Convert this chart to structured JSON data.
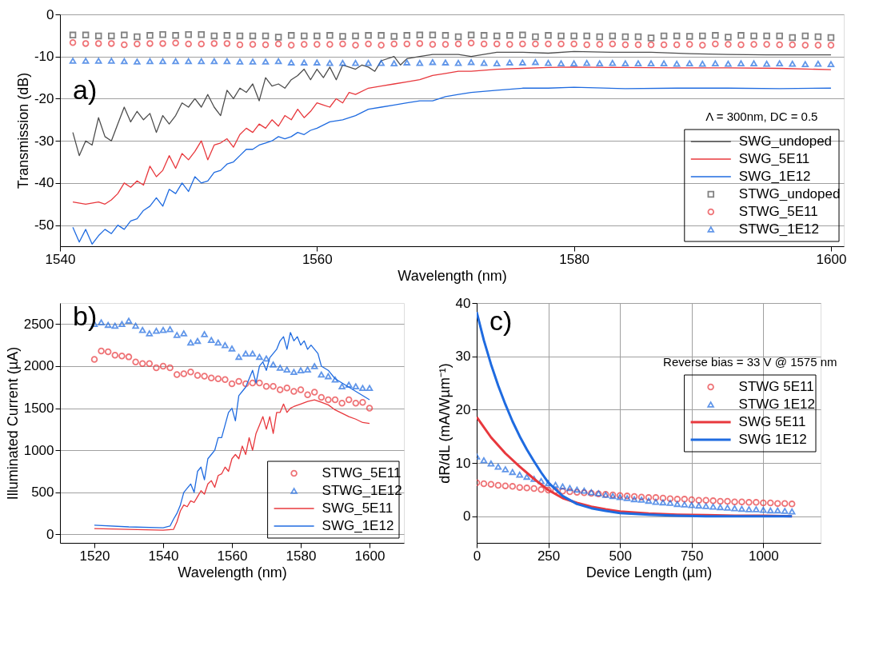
{
  "chart_data": [
    {
      "type": "line",
      "xlabel": "Wavelength (nm)",
      "ylabel": "Transmission (dB)",
      "xlim": [
        1540,
        1601
      ],
      "xticks": [
        1540,
        1560,
        1580,
        1600
      ],
      "ylim": [
        -55,
        0
      ],
      "yticks": [
        -50,
        -40,
        -30,
        -20,
        -10,
        0
      ],
      "grid": "y",
      "legend": "bottom right",
      "annotations": [
        "a)",
        "Λ = 300nm, DC = 0.5"
      ],
      "series": [
        {
          "name": "SWG_undoped",
          "color": "#4d4d4d",
          "x": [
            1541,
            1541.5,
            1542,
            1542.5,
            1543,
            1543.5,
            1544,
            1544.5,
            1545,
            1545.5,
            1546,
            1546.5,
            1547,
            1547.5,
            1548,
            1548.5,
            1549,
            1549.5,
            1550,
            1550.5,
            1551,
            1551.5,
            1552,
            1552.5,
            1553,
            1553.5,
            1554,
            1554.5,
            1555,
            1555.5,
            1556,
            1556.5,
            1557,
            1557.5,
            1558,
            1558.5,
            1559,
            1559.5,
            1560,
            1560.5,
            1561,
            1561.5,
            1562,
            1562.5,
            1563,
            1563.5,
            1564,
            1564.5,
            1565,
            1566,
            1566.5,
            1567,
            1568,
            1569,
            1570,
            1571,
            1572,
            1574,
            1576,
            1578,
            1580,
            1583,
            1586,
            1589,
            1592,
            1595,
            1598,
            1600
          ],
          "values": [
            -28,
            -33.5,
            -30,
            -31,
            -24.5,
            -29,
            -30,
            -26,
            -22,
            -25.5,
            -23,
            -25,
            -23.5,
            -28,
            -24,
            -26,
            -24,
            -21,
            -22,
            -20,
            -22,
            -19,
            -22,
            -24,
            -18,
            -20,
            -17.5,
            -18.5,
            -16.5,
            -20.5,
            -15,
            -17,
            -16.5,
            -17.5,
            -15.5,
            -14.5,
            -13,
            -15.5,
            -13,
            -15,
            -12.5,
            -15.5,
            -12,
            -12.5,
            -13,
            -12,
            -12.5,
            -13.5,
            -11,
            -10,
            -12,
            -10.5,
            -10,
            -9.5,
            -9.5,
            -9.5,
            -10,
            -9,
            -9,
            -9.2,
            -8.8,
            -9,
            -9,
            -9.3,
            -9.5,
            -9.6,
            -9.6,
            -9.6
          ]
        },
        {
          "name": "SWG_5E11",
          "color": "#e8383d",
          "x": [
            1541,
            1542,
            1543,
            1543.5,
            1544,
            1544.5,
            1545,
            1545.5,
            1546,
            1546.5,
            1547,
            1547.5,
            1548,
            1548.5,
            1549,
            1549.5,
            1550,
            1550.5,
            1551,
            1551.5,
            1552,
            1552.5,
            1553,
            1553.5,
            1554,
            1554.5,
            1555,
            1555.5,
            1556,
            1556.5,
            1557,
            1557.5,
            1558,
            1558.5,
            1559,
            1559.5,
            1560,
            1560.5,
            1561,
            1561.5,
            1562,
            1562.5,
            1563,
            1564,
            1565,
            1566,
            1567,
            1568,
            1569,
            1570,
            1571,
            1572,
            1574,
            1576,
            1578,
            1580,
            1584,
            1588,
            1592,
            1596,
            1600
          ],
          "values": [
            -44.5,
            -45,
            -44.5,
            -45,
            -44,
            -42.5,
            -40,
            -41,
            -39.5,
            -40.5,
            -36,
            -38.5,
            -37,
            -33.5,
            -36.5,
            -33,
            -34.5,
            -32.5,
            -30,
            -34.5,
            -31,
            -30.5,
            -29.5,
            -31.5,
            -28.5,
            -27,
            -28,
            -26,
            -27,
            -25,
            -26.5,
            -24,
            -25,
            -22.5,
            -24.5,
            -23,
            -21,
            -21.5,
            -22,
            -20,
            -21,
            -18.5,
            -19,
            -17.5,
            -17,
            -16.5,
            -16,
            -15.5,
            -14.5,
            -14,
            -13.5,
            -13.5,
            -13,
            -12.8,
            -12.6,
            -12.5,
            -12.6,
            -12.7,
            -12.7,
            -12.8,
            -13.1
          ]
        },
        {
          "name": "SWG_1E12",
          "color": "#1f6be0",
          "x": [
            1541,
            1541.5,
            1542,
            1542.5,
            1543,
            1543.5,
            1544,
            1544.5,
            1545,
            1545.5,
            1546,
            1546.5,
            1547,
            1547.5,
            1548,
            1548.5,
            1549,
            1549.5,
            1550,
            1550.5,
            1551,
            1551.5,
            1552,
            1552.5,
            1553,
            1553.5,
            1554,
            1554.5,
            1555,
            1555.5,
            1556,
            1556.5,
            1557,
            1557.5,
            1558,
            1558.5,
            1559,
            1559.5,
            1560,
            1561,
            1562,
            1563,
            1564,
            1565,
            1566,
            1567,
            1568,
            1569,
            1570,
            1571,
            1572,
            1574,
            1576,
            1578,
            1580,
            1584,
            1588,
            1592,
            1596,
            1600
          ],
          "values": [
            -50.5,
            -54,
            -51,
            -54.5,
            -52.5,
            -51,
            -52,
            -50,
            -51,
            -49,
            -48.5,
            -46.5,
            -45.5,
            -43.5,
            -45.5,
            -41.5,
            -42.5,
            -40,
            -42,
            -38.5,
            -40,
            -39.5,
            -37.5,
            -37,
            -35.5,
            -35,
            -33.5,
            -32,
            -32,
            -31,
            -30.5,
            -30,
            -29,
            -29.5,
            -29,
            -28,
            -28.5,
            -27.5,
            -27,
            -25.5,
            -25,
            -24,
            -22.5,
            -22,
            -21.5,
            -21,
            -20.5,
            -20.5,
            -19.5,
            -19,
            -18.5,
            -18,
            -17.5,
            -17.5,
            -17.3,
            -17.6,
            -17.5,
            -17.5,
            -17.6,
            -17.5
          ]
        },
        {
          "name": "STWG_undoped",
          "type": "scatter",
          "marker": "square",
          "color": "#4d4d4d",
          "x": [
            1541,
            1542,
            1543,
            1544,
            1545,
            1546,
            1547,
            1548,
            1549,
            1550,
            1551,
            1552,
            1553,
            1554,
            1555,
            1556,
            1557,
            1558,
            1559,
            1560,
            1561,
            1562,
            1563,
            1564,
            1565,
            1566,
            1567,
            1568,
            1569,
            1570,
            1571,
            1572,
            1573,
            1574,
            1575,
            1576,
            1577,
            1578,
            1579,
            1580,
            1581,
            1582,
            1583,
            1584,
            1585,
            1586,
            1587,
            1588,
            1589,
            1590,
            1591,
            1592,
            1593,
            1594,
            1595,
            1596,
            1597,
            1598,
            1599,
            1600
          ],
          "values": [
            -4.9,
            -4.9,
            -5.1,
            -5.1,
            -4.9,
            -5.3,
            -5.0,
            -4.8,
            -5.0,
            -4.8,
            -4.8,
            -5.1,
            -5.0,
            -5.1,
            -5.1,
            -5.1,
            -5.4,
            -5.0,
            -5.1,
            -5.1,
            -5.0,
            -5.2,
            -5.1,
            -5.0,
            -5.0,
            -5.2,
            -5.0,
            -4.9,
            -4.9,
            -5.0,
            -5.3,
            -4.9,
            -5.0,
            -5.1,
            -5.0,
            -4.9,
            -5.3,
            -5.0,
            -5.1,
            -5.1,
            -5.1,
            -5.3,
            -5.1,
            -5.3,
            -5.3,
            -5.6,
            -5.1,
            -5.1,
            -5.2,
            -5.1,
            -5.0,
            -5.4,
            -5.0,
            -5.1,
            -5.1,
            -5.1,
            -5.5,
            -5.1,
            -5.3,
            -5.5
          ]
        },
        {
          "name": "STWG_5E11",
          "type": "scatter",
          "marker": "circle",
          "color": "#e8383d",
          "x": [
            1541,
            1542,
            1543,
            1544,
            1545,
            1546,
            1547,
            1548,
            1549,
            1550,
            1551,
            1552,
            1553,
            1554,
            1555,
            1556,
            1557,
            1558,
            1559,
            1560,
            1561,
            1562,
            1563,
            1564,
            1565,
            1566,
            1567,
            1568,
            1569,
            1570,
            1571,
            1572,
            1573,
            1574,
            1575,
            1576,
            1577,
            1578,
            1579,
            1580,
            1581,
            1582,
            1583,
            1584,
            1585,
            1586,
            1587,
            1588,
            1589,
            1590,
            1591,
            1592,
            1593,
            1594,
            1595,
            1596,
            1597,
            1598,
            1599,
            1600
          ],
          "values": [
            -6.7,
            -6.9,
            -6.9,
            -6.9,
            -7.2,
            -7.0,
            -6.9,
            -6.9,
            -6.8,
            -7.0,
            -7.0,
            -6.9,
            -6.9,
            -7.2,
            -7.1,
            -7.2,
            -7.0,
            -7.3,
            -7.1,
            -7.1,
            -7.1,
            -7.0,
            -7.3,
            -7.0,
            -7.3,
            -7.0,
            -7.0,
            -6.9,
            -7.1,
            -7.1,
            -7.0,
            -6.8,
            -7.0,
            -7.0,
            -7.1,
            -7.0,
            -7.0,
            -7.0,
            -7.0,
            -7.0,
            -7.2,
            -7.1,
            -7.0,
            -7.2,
            -7.2,
            -7.2,
            -7.2,
            -7.2,
            -7.1,
            -7.3,
            -7.0,
            -7.1,
            -7.2,
            -7.1,
            -7.1,
            -7.2,
            -7.2,
            -7.3,
            -7.3,
            -7.3
          ]
        },
        {
          "name": "STWG_1E12",
          "type": "scatter",
          "marker": "triangle",
          "color": "#1f6be0",
          "x": [
            1541,
            1542,
            1543,
            1544,
            1545,
            1546,
            1547,
            1548,
            1549,
            1550,
            1551,
            1552,
            1553,
            1554,
            1555,
            1556,
            1557,
            1558,
            1559,
            1560,
            1561,
            1562,
            1563,
            1564,
            1565,
            1566,
            1567,
            1568,
            1569,
            1570,
            1571,
            1572,
            1573,
            1574,
            1575,
            1576,
            1577,
            1578,
            1579,
            1580,
            1581,
            1582,
            1583,
            1584,
            1585,
            1586,
            1587,
            1588,
            1589,
            1590,
            1591,
            1592,
            1593,
            1594,
            1595,
            1596,
            1597,
            1598,
            1599,
            1600
          ],
          "values": [
            -11.0,
            -11.0,
            -11.0,
            -11.0,
            -11.1,
            -11.2,
            -11.1,
            -11.1,
            -11.1,
            -11.1,
            -11.1,
            -11.1,
            -11.1,
            -11.2,
            -11.2,
            -11.2,
            -11.1,
            -11.4,
            -11.4,
            -11.4,
            -11.5,
            -11.5,
            -11.5,
            -11.5,
            -11.5,
            -11.6,
            -11.4,
            -11.5,
            -11.3,
            -11.4,
            -11.5,
            -11.3,
            -11.5,
            -11.6,
            -11.4,
            -11.4,
            -11.3,
            -11.5,
            -11.6,
            -11.6,
            -11.5,
            -11.6,
            -11.5,
            -11.6,
            -11.6,
            -11.6,
            -11.6,
            -11.7,
            -11.6,
            -11.7,
            -11.6,
            -11.7,
            -11.6,
            -11.6,
            -11.7,
            -11.6,
            -11.7,
            -11.8,
            -11.7,
            -11.8
          ]
        }
      ]
    },
    {
      "type": "line",
      "xlabel": "Wavelength (nm)",
      "ylabel": "Illuminated Current (µA)",
      "xlim": [
        1510,
        1610
      ],
      "xticks": [
        1520,
        1540,
        1560,
        1580,
        1600
      ],
      "ylim": [
        -100,
        2750
      ],
      "yticks": [
        0,
        500,
        1000,
        1500,
        2000,
        2500
      ],
      "grid": "y",
      "legend": "bottom right",
      "annotations": [
        "b)"
      ],
      "series": [
        {
          "name": "STWG_5E11",
          "type": "scatter",
          "marker": "circle",
          "color": "#e8383d",
          "x": [
            1520,
            1522,
            1524,
            1526,
            1528,
            1530,
            1532,
            1534,
            1536,
            1538,
            1540,
            1542,
            1544,
            1546,
            1548,
            1550,
            1552,
            1554,
            1556,
            1558,
            1560,
            1562,
            1564,
            1566,
            1568,
            1570,
            1572,
            1574,
            1576,
            1578,
            1580,
            1582,
            1584,
            1586,
            1588,
            1590,
            1592,
            1594,
            1596,
            1598,
            1600
          ],
          "values": [
            2080,
            2180,
            2170,
            2130,
            2120,
            2110,
            2050,
            2030,
            2030,
            1980,
            2000,
            1980,
            1900,
            1910,
            1930,
            1890,
            1880,
            1860,
            1850,
            1840,
            1790,
            1820,
            1790,
            1800,
            1800,
            1760,
            1760,
            1720,
            1740,
            1700,
            1720,
            1660,
            1690,
            1630,
            1600,
            1600,
            1560,
            1600,
            1560,
            1570,
            1500
          ]
        },
        {
          "name": "STWG_1E12",
          "type": "scatter",
          "marker": "triangle",
          "color": "#1f6be0",
          "x": [
            1520,
            1522,
            1524,
            1526,
            1528,
            1530,
            1532,
            1534,
            1536,
            1538,
            1540,
            1542,
            1544,
            1546,
            1548,
            1550,
            1552,
            1554,
            1556,
            1558,
            1560,
            1562,
            1564,
            1566,
            1568,
            1570,
            1572,
            1574,
            1576,
            1578,
            1580,
            1582,
            1584,
            1586,
            1588,
            1590,
            1592,
            1594,
            1596,
            1598,
            1600
          ],
          "values": [
            2500,
            2520,
            2490,
            2480,
            2500,
            2540,
            2480,
            2430,
            2390,
            2420,
            2430,
            2440,
            2370,
            2390,
            2280,
            2300,
            2380,
            2310,
            2280,
            2250,
            2210,
            2110,
            2150,
            2150,
            2110,
            2090,
            2020,
            1980,
            1960,
            1930,
            1950,
            1960,
            2000,
            1900,
            1880,
            1840,
            1760,
            1780,
            1760,
            1740,
            1740
          ]
        },
        {
          "name": "SWG_5E11",
          "color": "#e8383d",
          "x": [
            1520,
            1530,
            1540,
            1543,
            1544,
            1545,
            1546,
            1547,
            1548,
            1549,
            1550,
            1551,
            1552,
            1553,
            1554,
            1555,
            1556,
            1557,
            1558,
            1559,
            1560,
            1561,
            1562,
            1563,
            1564,
            1565,
            1566,
            1567,
            1568,
            1569,
            1570,
            1571,
            1572,
            1573,
            1574,
            1575,
            1576,
            1577,
            1578,
            1580,
            1582,
            1584,
            1586,
            1588,
            1590,
            1592,
            1594,
            1596,
            1598,
            1600
          ],
          "values": [
            70,
            60,
            50,
            60,
            150,
            280,
            350,
            330,
            400,
            380,
            450,
            520,
            480,
            600,
            640,
            560,
            700,
            720,
            800,
            750,
            900,
            950,
            900,
            1050,
            950,
            1150,
            1000,
            1200,
            1300,
            1400,
            1250,
            1400,
            1200,
            1450,
            1450,
            1550,
            1450,
            1500,
            1520,
            1550,
            1580,
            1600,
            1570,
            1540,
            1480,
            1440,
            1400,
            1370,
            1330,
            1320
          ]
        },
        {
          "name": "SWG_1E12",
          "color": "#1f6be0",
          "x": [
            1520,
            1530,
            1540,
            1542,
            1543,
            1544,
            1545,
            1546,
            1547,
            1548,
            1549,
            1550,
            1551,
            1552,
            1553,
            1554,
            1555,
            1556,
            1557,
            1558,
            1559,
            1560,
            1561,
            1562,
            1563,
            1564,
            1565,
            1566,
            1567,
            1568,
            1569,
            1570,
            1571,
            1572,
            1573,
            1574,
            1575,
            1576,
            1577,
            1578,
            1579,
            1580,
            1581,
            1582,
            1583,
            1584,
            1585,
            1586,
            1588,
            1590,
            1592,
            1594,
            1596,
            1598,
            1600
          ],
          "values": [
            110,
            90,
            80,
            100,
            180,
            250,
            350,
            500,
            550,
            600,
            500,
            750,
            800,
            650,
            900,
            950,
            1000,
            1150,
            1150,
            1300,
            1450,
            1500,
            1350,
            1650,
            1700,
            1750,
            1850,
            1950,
            1800,
            2000,
            2050,
            1950,
            2100,
            2150,
            2200,
            2300,
            2350,
            2200,
            2400,
            2300,
            2350,
            2250,
            2300,
            2200,
            2250,
            2200,
            2150,
            2000,
            1950,
            1850,
            1800,
            1750,
            1700,
            1650,
            1600
          ]
        }
      ]
    },
    {
      "type": "line",
      "xlabel": "Device Length (µm)",
      "ylabel": "dR/dL (mA/Wµm⁻¹)",
      "xlim": [
        0,
        1200
      ],
      "xticks": [
        0,
        250,
        500,
        750,
        1000
      ],
      "ylim": [
        -5,
        40
      ],
      "yticks": [
        0,
        10,
        20,
        30,
        40
      ],
      "grid": true,
      "legend": "top right",
      "annotations": [
        "c)",
        "Reverse bias = 33 V @ 1575 nm"
      ],
      "series": [
        {
          "name": "STWG 5E11",
          "type": "scatter",
          "marker": "circle",
          "color": "#e8383d",
          "x": [
            0,
            25,
            50,
            75,
            100,
            125,
            150,
            175,
            200,
            225,
            250,
            275,
            300,
            325,
            350,
            375,
            400,
            425,
            450,
            475,
            500,
            525,
            550,
            575,
            600,
            625,
            650,
            675,
            700,
            725,
            750,
            775,
            800,
            825,
            850,
            875,
            900,
            925,
            950,
            975,
            1000,
            1025,
            1050,
            1075,
            1100
          ],
          "values": [
            6.3,
            6.1,
            6.0,
            5.8,
            5.7,
            5.6,
            5.4,
            5.3,
            5.2,
            5.0,
            4.9,
            4.8,
            4.7,
            4.6,
            4.5,
            4.4,
            4.3,
            4.2,
            4.1,
            4.0,
            3.9,
            3.8,
            3.7,
            3.6,
            3.5,
            3.5,
            3.4,
            3.3,
            3.2,
            3.2,
            3.1,
            3.0,
            3.0,
            2.9,
            2.8,
            2.8,
            2.7,
            2.7,
            2.6,
            2.6,
            2.5,
            2.5,
            2.4,
            2.4,
            2.3
          ]
        },
        {
          "name": "STWG 1E12",
          "type": "scatter",
          "marker": "triangle",
          "color": "#1f6be0",
          "x": [
            0,
            25,
            50,
            75,
            100,
            125,
            150,
            175,
            200,
            225,
            250,
            275,
            300,
            325,
            350,
            375,
            400,
            425,
            450,
            475,
            500,
            525,
            550,
            575,
            600,
            625,
            650,
            675,
            700,
            725,
            750,
            775,
            800,
            825,
            850,
            875,
            900,
            925,
            950,
            975,
            1000,
            1025,
            1050,
            1075,
            1100
          ],
          "values": [
            11.2,
            10.5,
            9.9,
            9.3,
            8.8,
            8.3,
            7.8,
            7.4,
            7.0,
            6.6,
            6.2,
            5.9,
            5.6,
            5.3,
            5.0,
            4.8,
            4.5,
            4.3,
            4.0,
            3.8,
            3.6,
            3.4,
            3.2,
            3.1,
            2.9,
            2.7,
            2.6,
            2.5,
            2.3,
            2.2,
            2.1,
            2.0,
            1.9,
            1.8,
            1.7,
            1.6,
            1.5,
            1.4,
            1.3,
            1.3,
            1.2,
            1.1,
            1.1,
            1.0,
            0.9
          ]
        },
        {
          "name": "SWG 5E11",
          "color": "#e8383d",
          "x": [
            0,
            50,
            100,
            150,
            200,
            250,
            300,
            350,
            400,
            450,
            500,
            600,
            700,
            800,
            900,
            1000,
            1100
          ],
          "values": [
            18.6,
            14.8,
            11.8,
            9.3,
            7.0,
            4.9,
            3.4,
            2.5,
            1.8,
            1.3,
            0.9,
            0.5,
            0.3,
            0.2,
            0.1,
            0.1,
            0.0
          ]
        },
        {
          "name": "SWG 1E12",
          "color": "#1f6be0",
          "x": [
            0,
            25,
            50,
            75,
            100,
            125,
            150,
            175,
            200,
            225,
            250,
            300,
            350,
            400,
            450,
            500,
            600,
            700,
            800,
            900,
            1100
          ],
          "values": [
            38.3,
            33,
            28.5,
            24.5,
            21,
            17.8,
            15,
            12.5,
            10.3,
            8.2,
            6.3,
            3.8,
            2.3,
            1.5,
            1.0,
            0.6,
            0.3,
            0.1,
            0.0,
            0.0,
            0.0
          ]
        }
      ]
    }
  ]
}
